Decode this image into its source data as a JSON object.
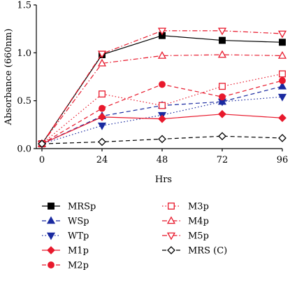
{
  "chart_data": {
    "type": "line",
    "xlabel": "Hrs",
    "ylabel": "Absorbance (660nm)",
    "x": [
      0,
      24,
      48,
      72,
      96
    ],
    "xticks": [
      "0",
      "24",
      "48",
      "72",
      "96"
    ],
    "ylim": [
      0,
      1.5
    ],
    "yticks": [
      "0.0",
      "0.5",
      "1.0",
      "1.5"
    ],
    "series": [
      {
        "name": "MRSp",
        "color": "#000000",
        "dash": "solid",
        "marker": "square",
        "fill": "filled",
        "values": [
          0.05,
          0.98,
          1.18,
          1.13,
          1.11
        ]
      },
      {
        "name": "WSp",
        "color": "#1a2aa0",
        "dash": "dashed",
        "marker": "triangle",
        "fill": "filled",
        "values": [
          0.05,
          0.34,
          0.45,
          0.49,
          0.65
        ]
      },
      {
        "name": "WTp",
        "color": "#1a2aa0",
        "dash": "dotted",
        "marker": "triangle-down",
        "fill": "filled",
        "values": [
          0.05,
          0.24,
          0.35,
          0.49,
          0.54
        ]
      },
      {
        "name": "M1p",
        "color": "#e8192c",
        "dash": "solid",
        "marker": "diamond",
        "fill": "filled",
        "values": [
          0.05,
          0.33,
          0.31,
          0.36,
          0.32
        ]
      },
      {
        "name": "M2p",
        "color": "#e8192c",
        "dash": "dashed",
        "marker": "circle",
        "fill": "filled",
        "values": [
          0.05,
          0.42,
          0.67,
          0.54,
          0.71
        ]
      },
      {
        "name": "M3p",
        "color": "#e8192c",
        "dash": "dotted",
        "marker": "square",
        "fill": "open",
        "values": [
          0.05,
          0.57,
          0.45,
          0.65,
          0.78
        ]
      },
      {
        "name": "M4p",
        "color": "#e8192c",
        "dash": "dashdot",
        "marker": "triangle",
        "fill": "open",
        "values": [
          0.05,
          0.89,
          0.97,
          0.98,
          0.97
        ]
      },
      {
        "name": "M5p",
        "color": "#e8192c",
        "dash": "dashdot",
        "marker": "triangle-down",
        "fill": "open",
        "values": [
          0.05,
          0.99,
          1.23,
          1.23,
          1.2
        ]
      },
      {
        "name": "MRS (C)",
        "color": "#000000",
        "dash": "dashed",
        "marker": "diamond",
        "fill": "open",
        "values": [
          0.05,
          0.07,
          0.1,
          0.13,
          0.11
        ]
      }
    ],
    "legend_placement": "bottom"
  }
}
